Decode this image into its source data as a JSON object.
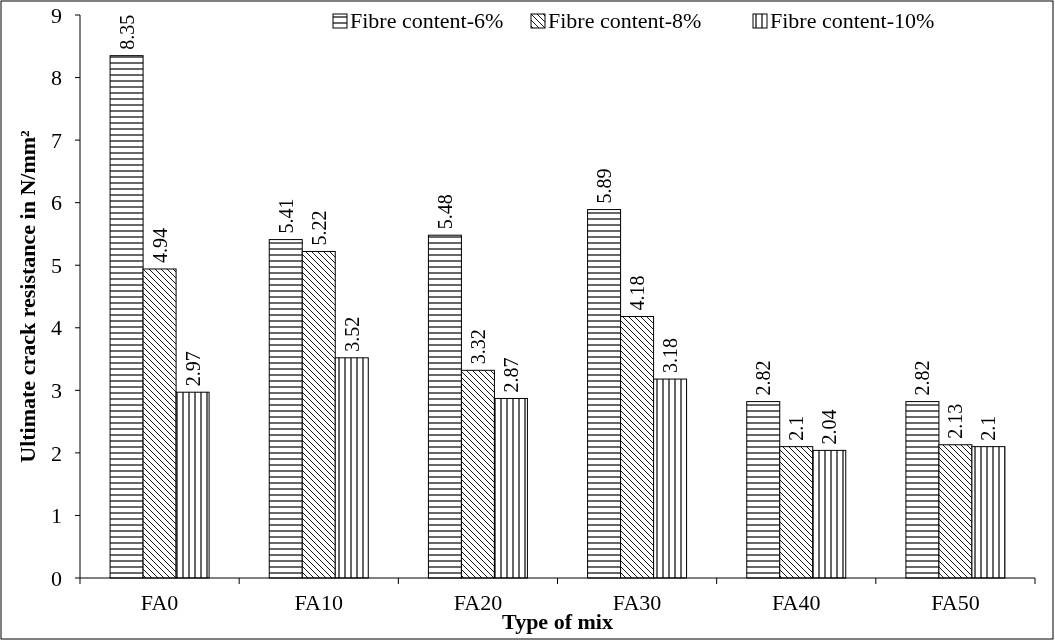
{
  "chart_data": {
    "type": "bar",
    "xlabel": "Type of mix",
    "ylabel": "Ultimate  crack resistance in N/mm²",
    "categories": [
      "FA0",
      "FA10",
      "FA20",
      "FA30",
      "FA40",
      "FA50"
    ],
    "series": [
      {
        "name": "Fibre content-6%",
        "color": "#000000",
        "values": [
          8.35,
          5.41,
          5.48,
          5.89,
          2.82,
          2.82
        ]
      },
      {
        "name": "Fibre content-8%",
        "color": "#000000",
        "values": [
          4.94,
          5.22,
          3.32,
          4.18,
          2.1,
          2.13
        ]
      },
      {
        "name": "Fibre content-10%",
        "color": "#000000",
        "values": [
          2.97,
          3.52,
          2.87,
          3.18,
          2.04,
          2.1
        ]
      }
    ],
    "ylim": [
      0,
      9
    ],
    "yticks": [
      0,
      1,
      2,
      3,
      4,
      5,
      6,
      7,
      8,
      9
    ],
    "data_labels": true,
    "legend": "top",
    "grid": false
  }
}
